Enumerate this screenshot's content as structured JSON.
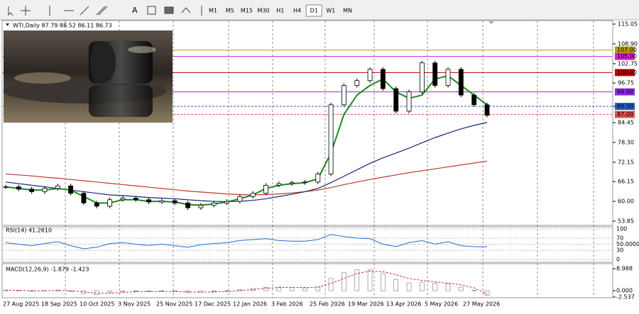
{
  "toolbar": {
    "timeframes": [
      "M1",
      "M5",
      "M15",
      "M30",
      "H1",
      "H4",
      "D1",
      "W1",
      "MN"
    ],
    "active": "D1"
  },
  "chart": {
    "info": "WTI,Daily 87.79 88.52 86.11 86.73",
    "ylim": [
      53.85,
      115.05
    ],
    "ticks": [
      115.05,
      {
        "value": 108.9,
        "label": "108.90"
      },
      102.75,
      96.75,
      {
        "value": 89.5,
        "label": "89.50"
      },
      84.45,
      {
        "value": 78.3,
        "label": "78.30"
      },
      72.15,
      66.15,
      {
        "value": 60,
        "label": "60.00"
      },
      53.85
    ],
    "levels": [
      {
        "value": 107,
        "label": "107.00",
        "color": "#b5a000",
        "style": "solid"
      },
      {
        "value": 105,
        "label": "105.00",
        "color": "#d020d0",
        "style": "solid"
      },
      {
        "value": 100,
        "label": "100.00",
        "color": "#c00000",
        "style": "solid"
      },
      {
        "value": 94,
        "label": "94.00",
        "color": "#8a2be2",
        "style": "solid"
      },
      {
        "value": 89.5,
        "label": "89.50",
        "color": "#1e5fc0",
        "style": "dashed"
      },
      {
        "value": 87,
        "label": "87.00",
        "color": "#e05050",
        "style": "dashed"
      }
    ],
    "candles": [
      64.5,
      63.8,
      63.0,
      64.0,
      64.8,
      62.5,
      59.5,
      58.5,
      60.5,
      61.0,
      60.5,
      59.8,
      60.2,
      59.5,
      58.0,
      58.8,
      59.5,
      60.0,
      61.5,
      62.5,
      65.0,
      65.5,
      65.8,
      66.0,
      68.5,
      90.0,
      96.0,
      97.5,
      101.0,
      95.0,
      88.0,
      94.0,
      103.0,
      96.0,
      101.0,
      93.0,
      90.0,
      86.73
    ],
    "averages": [
      {
        "color": "#c0392b",
        "values": [
          68.5,
          68.2,
          67.9,
          67.5,
          67.2,
          66.8,
          66.4,
          66.0,
          65.6,
          65.2,
          64.8,
          64.4,
          64.0,
          63.6,
          63.2,
          62.9,
          62.6,
          62.3,
          62.1,
          62.0,
          62.1,
          62.3,
          62.6,
          63.0,
          63.5,
          64.3,
          65.2,
          66.0,
          66.8,
          67.5,
          68.2,
          68.9,
          69.5,
          70.1,
          70.7,
          71.3,
          71.9,
          72.5
        ]
      },
      {
        "color": "#1a237e",
        "values": [
          66,
          65.5,
          65,
          64.5,
          64,
          63.5,
          63,
          62.5,
          62,
          61.8,
          61.5,
          61.2,
          61,
          60.8,
          60.5,
          60.2,
          60,
          59.9,
          60,
          60.3,
          60.8,
          61.5,
          62.2,
          63,
          64,
          65.8,
          67.8,
          69.8,
          71.8,
          73.5,
          75,
          76.5,
          78.2,
          79.8,
          81.2,
          82.5,
          83.6,
          84.5
        ]
      },
      {
        "color": "#1b8a1b",
        "values": [
          64.5,
          64,
          63.5,
          63.5,
          64,
          63.5,
          61.5,
          59.5,
          59.5,
          60.5,
          60.5,
          60,
          60,
          59.8,
          59,
          58.8,
          59.2,
          59.8,
          60.8,
          62,
          64,
          65,
          65.5,
          65.8,
          67,
          75,
          87,
          93,
          96,
          98,
          94,
          92,
          93,
          98,
          99,
          96,
          93,
          90
        ]
      }
    ],
    "rsi": {
      "title": "RSI(14) 41.2610",
      "ylim": [
        0,
        100
      ],
      "ticks": [
        100,
        70,
        {
          "value": 50,
          "label": "50.0000"
        },
        30,
        0
      ],
      "values": [
        55,
        50,
        45,
        52,
        58,
        45,
        35,
        40,
        52,
        55,
        50,
        46,
        50,
        45,
        40,
        48,
        52,
        55,
        62,
        65,
        68,
        62,
        60,
        60,
        65,
        82,
        75,
        70,
        68,
        50,
        42,
        55,
        62,
        50,
        58,
        45,
        42,
        41.261
      ]
    },
    "macd": {
      "title": "MACD(12,26,9) -1.879 -1.423",
      "ylim": [
        -2.537,
        8.988
      ],
      "ticks": [
        8.988,
        {
          "value": 0,
          "label": "0.000"
        },
        -2.537
      ],
      "histogram": [
        0.3,
        0.1,
        -0.2,
        0.1,
        0.3,
        -0.3,
        -1.2,
        -1.5,
        -0.8,
        -0.3,
        -0.2,
        -0.4,
        -0.2,
        -0.3,
        -0.8,
        -0.6,
        -0.3,
        0,
        0.5,
        0.9,
        1.4,
        1.5,
        1.4,
        1.2,
        1.6,
        5,
        7.5,
        8.5,
        8.5,
        7,
        4.5,
        3.2,
        3.5,
        3,
        2.8,
        1.5,
        0.2,
        -1.879
      ],
      "signal": [
        0.2,
        0.2,
        0,
        0,
        0.1,
        0,
        -0.5,
        -1,
        -1,
        -0.7,
        -0.4,
        -0.3,
        -0.3,
        -0.3,
        -0.5,
        -0.6,
        -0.5,
        -0.3,
        0,
        0.5,
        1,
        1.3,
        1.4,
        1.3,
        1.4,
        3,
        5,
        7,
        8,
        7.8,
        6.5,
        5,
        4.2,
        3.6,
        3.1,
        2.4,
        1.2,
        -1.423
      ]
    },
    "dates": [
      "27 Aug 2025",
      "18 Sep 2025",
      "10 Oct 2025",
      "3 Nov 2025",
      "25 Nov 2025",
      "17 Dec 2025",
      "12 Jan 2026",
      "3 Feb 2026",
      "25 Feb 2026",
      "19 Mar 2026",
      "13 Apr 2026",
      "5 May 2026",
      "27 May 2026"
    ]
  }
}
